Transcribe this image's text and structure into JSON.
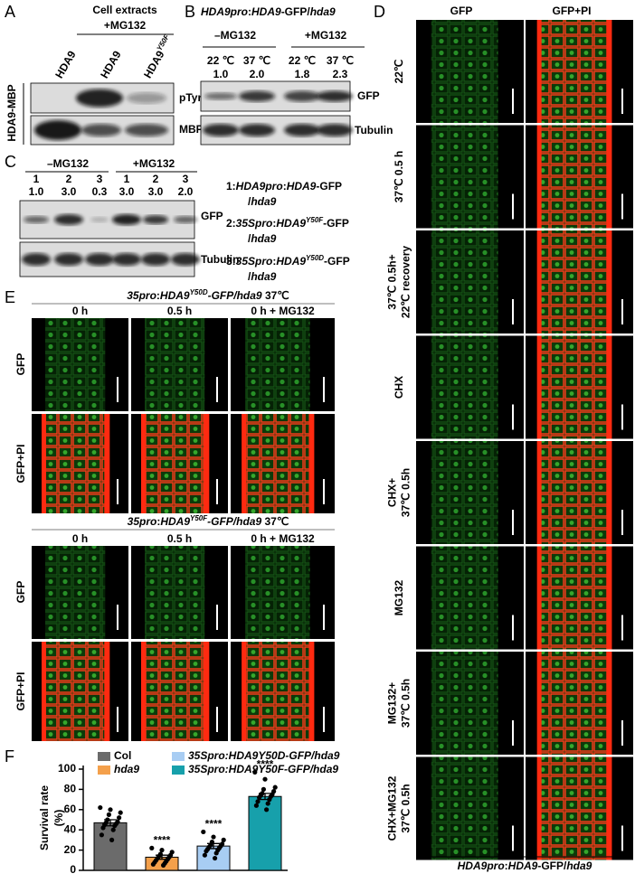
{
  "panel_A": {
    "label": "A",
    "header": "Cell extracts",
    "treatment": "+MG132",
    "lanes": [
      "HDA9",
      "HDA9",
      [
        "HDA9",
        {
          "sup": "Y50F"
        }
      ]
    ],
    "group": "HDA9-MBP",
    "rows": [
      "pTyr",
      "MBP"
    ]
  },
  "panel_B": {
    "label": "B",
    "title": [
      {
        "i": "HDA9pro"
      },
      ":",
      {
        "i": "HDA9"
      },
      "-GFP/",
      {
        "i": "hda9"
      }
    ],
    "groups": [
      "–MG132",
      "+MG132"
    ],
    "temperatures": [
      "22 ℃",
      "37 ℃",
      "22 ℃",
      "37 ℃"
    ],
    "ratios": [
      "1.0",
      "2.0",
      "1.8",
      "2.3"
    ],
    "rows": [
      "GFP",
      "Tubulin"
    ]
  },
  "panel_C": {
    "label": "C",
    "groups": [
      "–MG132",
      "+MG132"
    ],
    "lanes": [
      "1",
      "2",
      "3",
      "1",
      "2",
      "3"
    ],
    "ratios": [
      "1.0",
      "3.0",
      "0.3",
      "3.0",
      "3.0",
      "2.0"
    ],
    "rows": [
      "GFP",
      "Tubulin"
    ],
    "key": [
      [
        "1:",
        {
          "i": "HDA9pro"
        },
        ":",
        {
          "i": "HDA9"
        },
        "-GFP"
      ],
      [
        "/",
        {
          "i": "hda9"
        }
      ],
      [
        "2:",
        {
          "i": "35Spro"
        },
        ":",
        {
          "i": "HDA9"
        },
        {
          "sup": "Y50F"
        },
        "-GFP"
      ],
      [
        "/",
        {
          "i": "hda9"
        }
      ],
      [
        "3:",
        {
          "i": "35Spro"
        },
        ":",
        {
          "i": "HDA9"
        },
        {
          "sup": "Y50D"
        },
        "-GFP"
      ],
      [
        "/",
        {
          "i": "hda9"
        }
      ]
    ]
  },
  "panel_D": {
    "label": "D",
    "columns": [
      "GFP",
      "GFP+PI"
    ],
    "rows": [
      [
        "22℃"
      ],
      [
        "37℃ 0.5 h"
      ],
      [
        "37℃ 0.5h+",
        "22℃ recovery"
      ],
      [
        "CHX"
      ],
      [
        "CHX+",
        "37℃ 0.5h"
      ],
      [
        "MG132"
      ],
      [
        "MG132+",
        "37℃ 0.5h"
      ],
      [
        "CHX+MG132",
        "37℃ 0.5h"
      ]
    ],
    "caption": [
      {
        "i": "HDA9pro"
      },
      ":",
      {
        "i": "HDA9"
      },
      "-GFP/",
      {
        "i": "hda9"
      }
    ]
  },
  "panel_E": {
    "label": "E",
    "blocks": [
      {
        "title": [
          {
            "i": "35pro"
          },
          ":",
          {
            "i": "HDA9"
          },
          {
            "sup": "Y50D"
          },
          {
            "i": "-GFP/hda9"
          },
          " 37℃"
        ],
        "columns": [
          "0 h",
          "0.5 h",
          "0 h + MG132"
        ],
        "rows": [
          "GFP",
          "GFP+PI"
        ]
      },
      {
        "title": [
          {
            "i": "35pro"
          },
          ":",
          {
            "i": "HDA9"
          },
          {
            "sup": "Y50F"
          },
          {
            "i": "-GFP/hda9"
          },
          " 37℃"
        ],
        "columns": [
          "0 h",
          "0.5 h",
          "0 h + MG132"
        ],
        "rows": [
          "GFP",
          "GFP+PI"
        ]
      }
    ]
  },
  "chart_data": {
    "type": "bar",
    "label": "F",
    "ylabel": [
      "Survival rate",
      "(%)"
    ],
    "categories": [
      "Col",
      "hda9",
      "35Spro:HDA9Y50D-GFP/hda9",
      "35Spro:HDA9Y50F-GFP/hda9"
    ],
    "colors": [
      "#6b6b6b",
      "#f4a04b",
      "#a8cdf3",
      "#17a0ab"
    ],
    "values": [
      47,
      13,
      24,
      73
    ],
    "errors": [
      3,
      2,
      2.5,
      3
    ],
    "points": [
      [
        62,
        60,
        57,
        55,
        52,
        50,
        48,
        47,
        46,
        45,
        44,
        42,
        40,
        35,
        30
      ],
      [
        22,
        20,
        18,
        16,
        15,
        14,
        13,
        12,
        11,
        10,
        9,
        8,
        7,
        6,
        5
      ],
      [
        38,
        33,
        30,
        28,
        26,
        25,
        24,
        23,
        22,
        21,
        20,
        19,
        17,
        15,
        12
      ],
      [
        97,
        90,
        82,
        80,
        78,
        76,
        75,
        74,
        73,
        72,
        70,
        68,
        66,
        64,
        60
      ]
    ],
    "annotations": [
      null,
      "****",
      "****",
      "****"
    ],
    "ylim": [
      0,
      100
    ],
    "yticks": [
      0,
      20,
      40,
      60,
      80,
      100
    ]
  }
}
